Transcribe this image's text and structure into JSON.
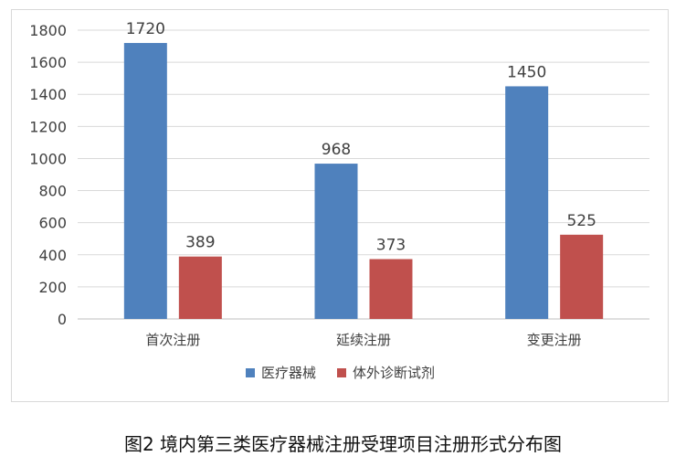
{
  "caption": "图2 境内第三类医疗器械注册受理项目注册形式分布图",
  "chart_data": {
    "type": "bar",
    "categories": [
      "首次注册",
      "延续注册",
      "变更注册"
    ],
    "series": [
      {
        "name": "医疗器械",
        "values": [
          1720,
          968,
          1450
        ],
        "color": "#4f81bd"
      },
      {
        "name": "体外诊断试剂",
        "values": [
          389,
          373,
          525
        ],
        "color": "#c0504d"
      }
    ],
    "ylim": [
      0,
      1800
    ],
    "yticks": [
      0,
      200,
      400,
      600,
      800,
      1000,
      1200,
      1400,
      1600,
      1800
    ],
    "grid": true,
    "legend_position": "bottom",
    "data_labels": true
  }
}
